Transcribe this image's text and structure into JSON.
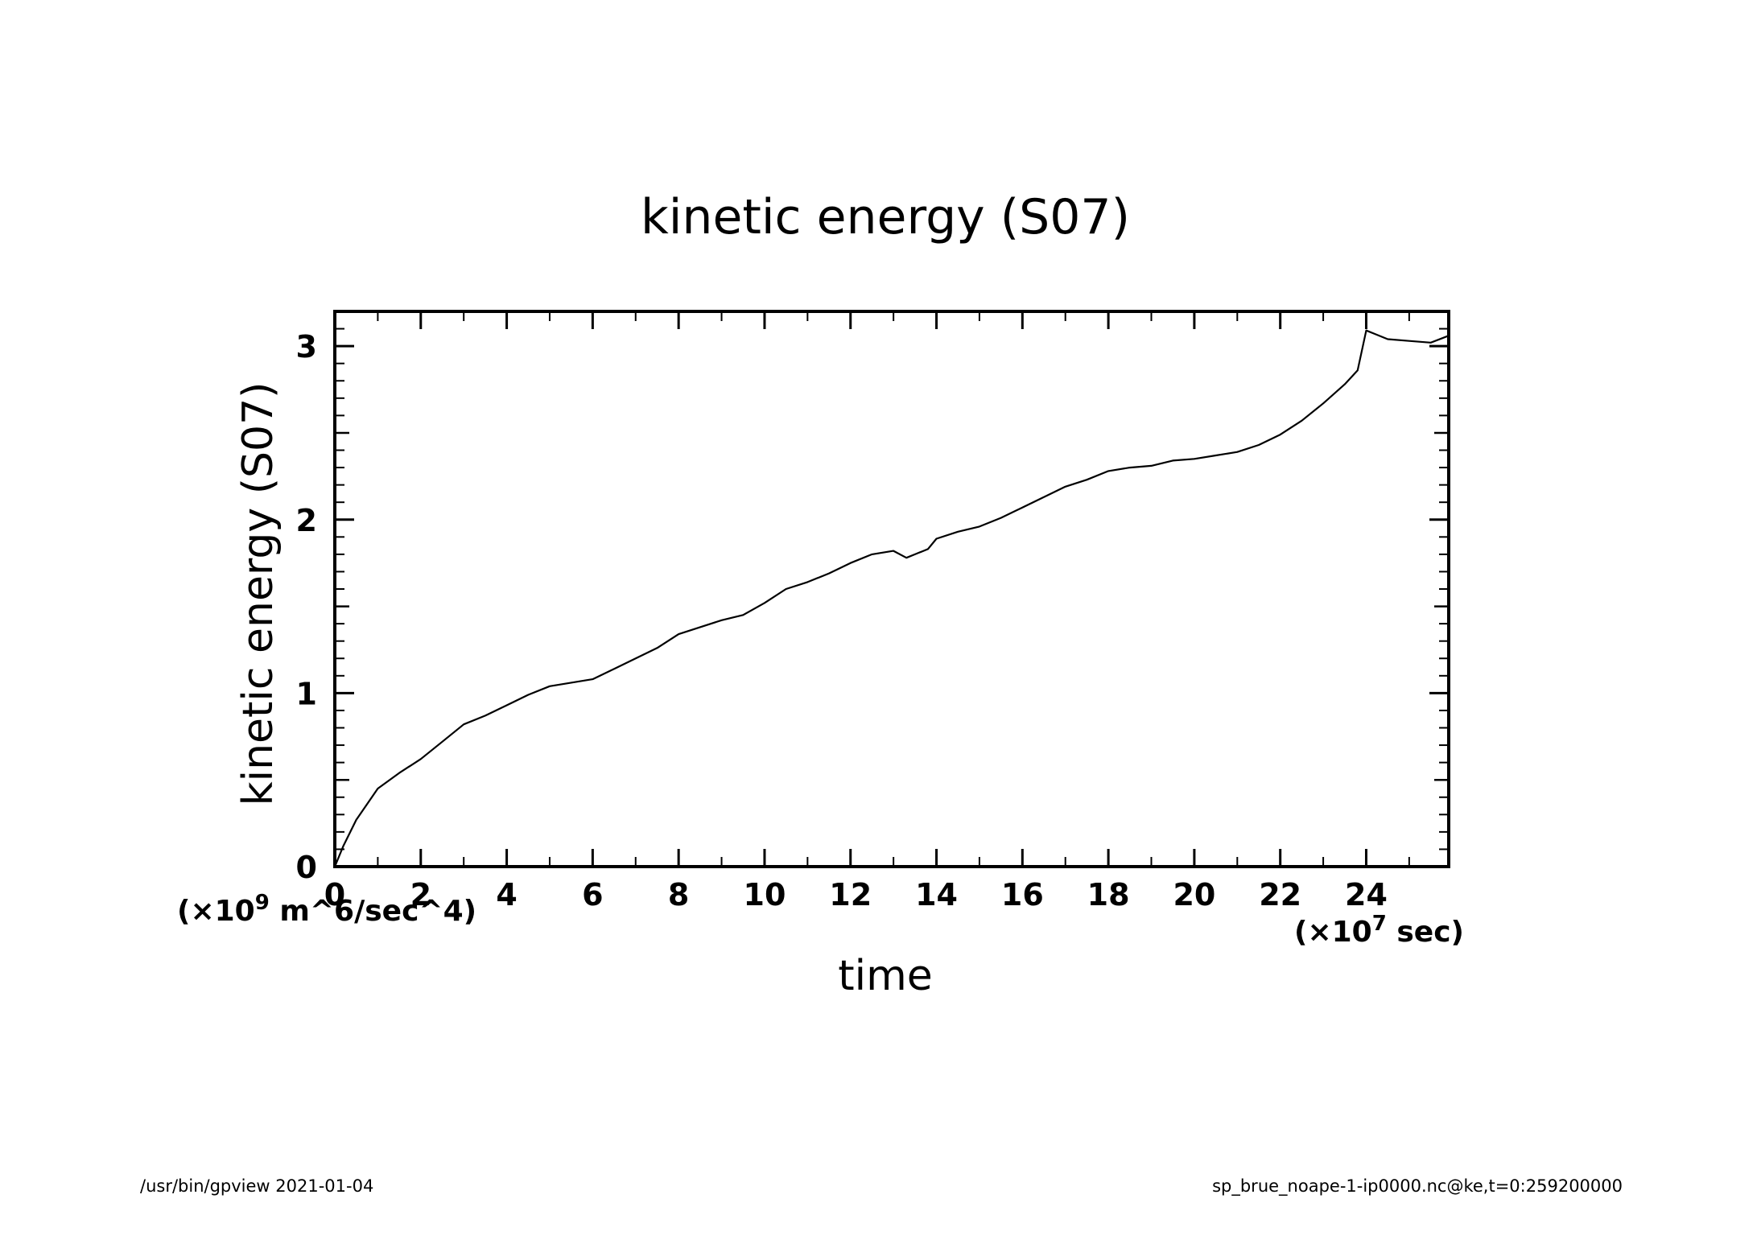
{
  "chart_data": {
    "type": "line",
    "title": "kinetic energy (S07)",
    "xlabel": "time",
    "ylabel": "kinetic energy (S07)",
    "x_unit_label": "(×10^7 sec)",
    "y_unit_label": "(×10^9 m^6/sec^4)",
    "x_scale_exponent": "7",
    "y_scale_exponent": "9",
    "x_unit_prefix": "(×10",
    "x_unit_suffix": " sec)",
    "y_unit_prefix": "(×10",
    "y_unit_suffix": " m^6/sec^4)",
    "xlim": [
      0,
      25.92
    ],
    "ylim": [
      0,
      3.2
    ],
    "x_ticks": [
      "0",
      "2",
      "4",
      "6",
      "8",
      "10",
      "12",
      "14",
      "16",
      "18",
      "20",
      "22",
      "24"
    ],
    "y_ticks": [
      "0",
      "1",
      "2",
      "3"
    ],
    "x": [
      0,
      0.2,
      0.5,
      1.0,
      1.5,
      2.0,
      2.5,
      3.0,
      3.5,
      4.0,
      4.5,
      5.0,
      5.5,
      6.0,
      6.5,
      7.0,
      7.5,
      8.0,
      8.5,
      9.0,
      9.5,
      10.0,
      10.5,
      11.0,
      11.5,
      12.0,
      12.5,
      13.0,
      13.3,
      13.5,
      13.8,
      14.0,
      14.5,
      15.0,
      15.5,
      16.0,
      16.5,
      17.0,
      17.5,
      18.0,
      18.5,
      19.0,
      19.5,
      20.0,
      20.5,
      21.0,
      21.5,
      22.0,
      22.5,
      23.0,
      23.5,
      23.8,
      24.0,
      24.2,
      24.5,
      25.0,
      25.5,
      25.92
    ],
    "y": [
      0.0,
      0.12,
      0.27,
      0.45,
      0.54,
      0.62,
      0.72,
      0.82,
      0.87,
      0.93,
      0.99,
      1.04,
      1.06,
      1.08,
      1.14,
      1.2,
      1.26,
      1.34,
      1.38,
      1.42,
      1.45,
      1.52,
      1.6,
      1.64,
      1.69,
      1.75,
      1.8,
      1.82,
      1.78,
      1.8,
      1.83,
      1.89,
      1.93,
      1.96,
      2.01,
      2.07,
      2.13,
      2.19,
      2.23,
      2.28,
      2.3,
      2.31,
      2.34,
      2.35,
      2.37,
      2.39,
      2.43,
      2.49,
      2.57,
      2.67,
      2.78,
      2.86,
      3.09,
      3.07,
      3.04,
      3.03,
      3.02,
      3.06
    ]
  },
  "footer": {
    "left": "/usr/bin/gpview   2021-01-04",
    "right": "sp_brue_noape-1-ip0000.nc@ke,t=0:259200000"
  },
  "colors": {
    "line": "#000000",
    "axes": "#000000",
    "background": "#ffffff"
  }
}
